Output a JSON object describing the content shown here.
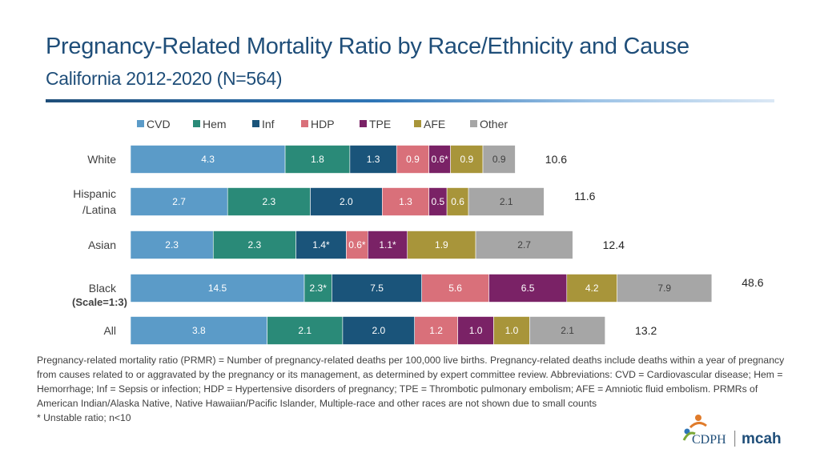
{
  "header": {
    "title": "Pregnancy-Related Mortality Ratio by Race/Ethnicity and Cause",
    "subtitle": "California 2012-2020 (N=564)"
  },
  "colors": {
    "CVD": "#5b9bc8",
    "Hem": "#2a8a78",
    "Inf": "#1a547a",
    "HDP": "#d9707a",
    "TPE": "#7a2266",
    "AFE": "#a8953a",
    "Other": "#a6a6a6"
  },
  "chart_data": {
    "type": "bar",
    "orientation": "horizontal",
    "stacked": true,
    "categories": [
      "White",
      "Hispanic /Latina",
      "Asian",
      "Black",
      "All"
    ],
    "category_lines": [
      [
        "White"
      ],
      [
        "Hispanic",
        "/Latina"
      ],
      [
        "Asian"
      ],
      [
        "Black"
      ],
      [
        "All"
      ]
    ],
    "scale_note": "(Scale=1:3)",
    "scale_note_category": "Black",
    "scale_factor": [
      1,
      1,
      1,
      3,
      1
    ],
    "series": [
      {
        "name": "CVD",
        "values": [
          4.3,
          2.7,
          2.3,
          14.5,
          3.8
        ],
        "labels": [
          "4.3",
          "2.7",
          "2.3",
          "14.5",
          "3.8"
        ]
      },
      {
        "name": "Hem",
        "values": [
          1.8,
          2.3,
          2.3,
          2.3,
          2.1
        ],
        "labels": [
          "1.8",
          "2.3",
          "2.3",
          "2.3*",
          "2.1"
        ]
      },
      {
        "name": "Inf",
        "values": [
          1.3,
          2.0,
          1.4,
          7.5,
          2.0
        ],
        "labels": [
          "1.3",
          "2.0",
          "1.4*",
          "7.5",
          "2.0"
        ]
      },
      {
        "name": "HDP",
        "values": [
          0.9,
          1.3,
          0.6,
          5.6,
          1.2
        ],
        "labels": [
          "0.9",
          "1.3",
          "0.6*",
          "5.6",
          "1.2"
        ]
      },
      {
        "name": "TPE",
        "values": [
          0.6,
          0.5,
          1.1,
          6.5,
          1.0
        ],
        "labels": [
          "0.6*",
          "0.5",
          "1.1*",
          "6.5",
          "1.0"
        ]
      },
      {
        "name": "AFE",
        "values": [
          0.9,
          0.6,
          1.9,
          4.2,
          1.0
        ],
        "labels": [
          "0.9",
          "0.6",
          "1.9",
          "4.2",
          "1.0"
        ]
      },
      {
        "name": "Other",
        "values": [
          0.9,
          2.1,
          2.7,
          7.9,
          2.1
        ],
        "labels": [
          "0.9",
          "2.1",
          "2.7",
          "7.9",
          "2.1"
        ]
      }
    ],
    "totals": [
      "10.6",
      "11.6",
      "12.4",
      "48.6",
      "13.2"
    ],
    "legend": [
      "CVD",
      "Hem",
      "Inf",
      "HDP",
      "TPE",
      "AFE",
      "Other"
    ],
    "legend_position": "top",
    "title": "",
    "xlabel": "",
    "ylabel": ""
  },
  "footnote": {
    "definition": "Pregnancy-related mortality ratio (PRMR) = Number of pregnancy-related deaths per 100,000 live births. Pregnancy-related deaths include deaths within a year of pregnancy from causes related to or aggravated by the pregnancy or its management, as determined by expert committee review. Abbreviations: CVD = Cardiovascular disease; Hem = Hemorrhage; Inf = Sepsis or infection; HDP = Hypertensive disorders of pregnancy; TPE = Thrombotic pulmonary embolism; AFE = Amniotic fluid embolism. PRMRs of American Indian/Alaska Native, Native Hawaiian/Pacific Islander, Multiple-race and other races are not shown due to small counts",
    "unstable": "* Unstable ratio; n<10"
  },
  "logo": {
    "left_text": "CDPH",
    "right_text": "mcah"
  }
}
